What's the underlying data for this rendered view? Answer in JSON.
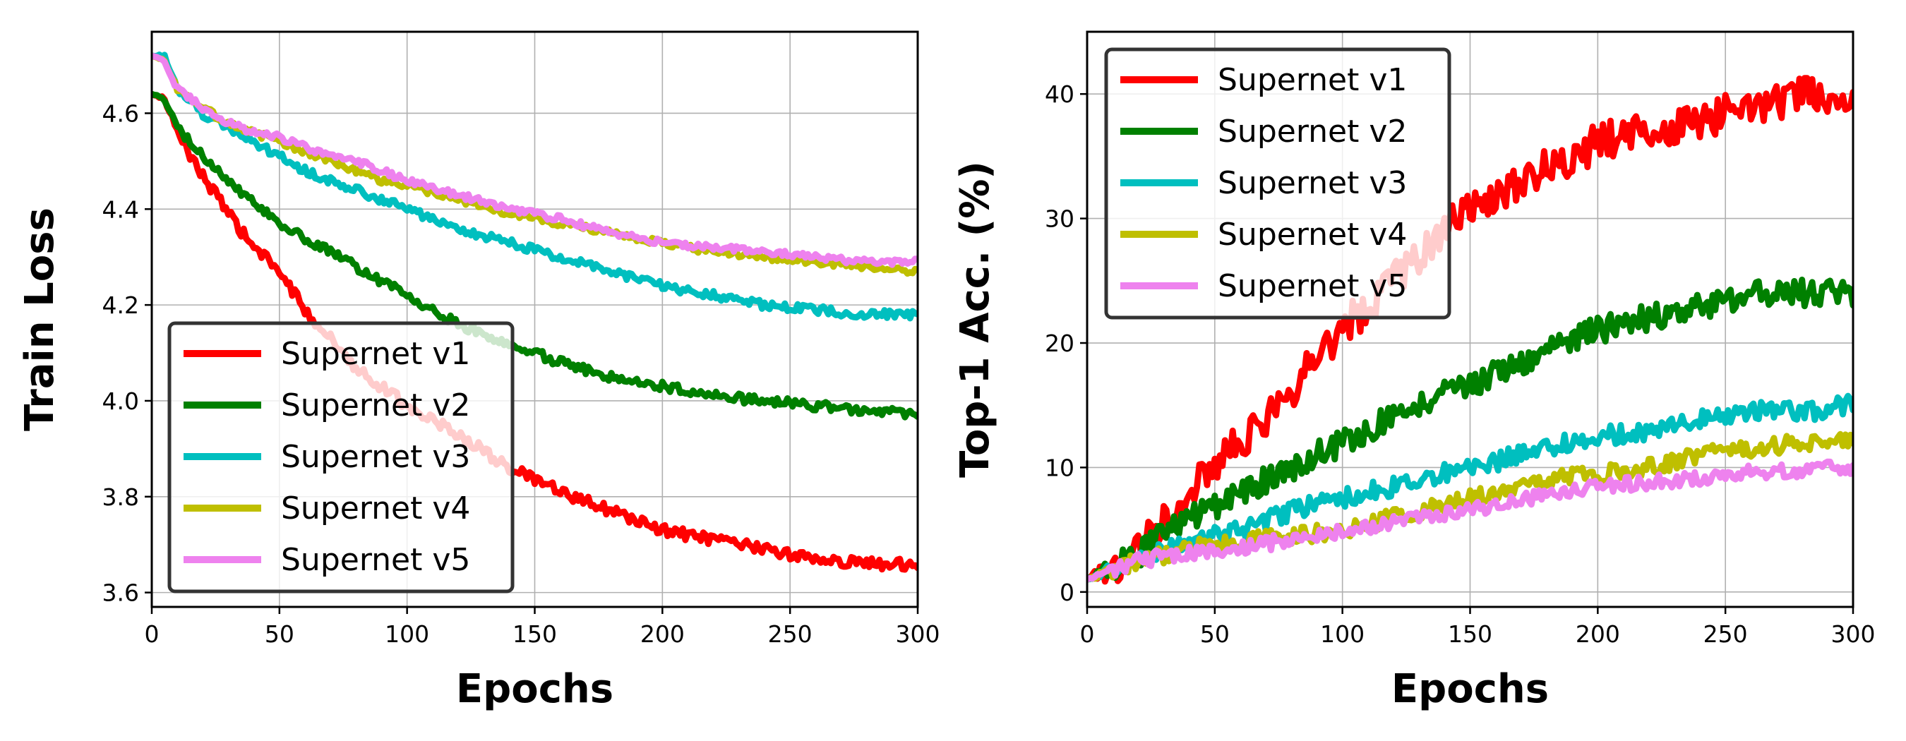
{
  "chart_data": [
    {
      "type": "line",
      "xlabel": "Epochs",
      "ylabel": "Train Loss",
      "xlim": [
        0,
        300
      ],
      "ylim": [
        3.57,
        4.77
      ],
      "xticks": [
        0,
        50,
        100,
        150,
        200,
        250,
        300
      ],
      "yticks": [
        3.6,
        3.8,
        4.0,
        4.2,
        4.4,
        4.6
      ],
      "ytick_labels": [
        "3.6",
        "3.8",
        "4.0",
        "4.2",
        "4.4",
        "4.6"
      ],
      "grid": true,
      "legend_position": "lower-left",
      "series": [
        {
          "name": "Supernet v1",
          "color": "#ff0000",
          "noise": 0.012,
          "x": [
            0,
            5,
            10,
            20,
            30,
            40,
            50,
            60,
            70,
            80,
            90,
            100,
            120,
            140,
            160,
            180,
            200,
            220,
            240,
            260,
            280,
            300
          ],
          "y": [
            4.64,
            4.63,
            4.56,
            4.47,
            4.39,
            4.32,
            4.27,
            4.19,
            4.13,
            4.07,
            4.03,
            3.99,
            3.93,
            3.86,
            3.81,
            3.77,
            3.73,
            3.71,
            3.69,
            3.67,
            3.66,
            3.66
          ]
        },
        {
          "name": "Supernet v2",
          "color": "#008000",
          "noise": 0.01,
          "x": [
            0,
            5,
            10,
            20,
            30,
            40,
            50,
            60,
            70,
            80,
            90,
            100,
            120,
            140,
            160,
            180,
            200,
            220,
            240,
            260,
            280,
            300
          ],
          "y": [
            4.64,
            4.63,
            4.57,
            4.51,
            4.46,
            4.41,
            4.37,
            4.34,
            4.31,
            4.28,
            4.25,
            4.22,
            4.16,
            4.12,
            4.08,
            4.05,
            4.03,
            4.01,
            4.0,
            3.99,
            3.98,
            3.97
          ]
        },
        {
          "name": "Supernet v3",
          "color": "#00bfbf",
          "noise": 0.009,
          "x": [
            0,
            5,
            10,
            20,
            30,
            40,
            50,
            60,
            70,
            80,
            90,
            100,
            120,
            140,
            160,
            180,
            200,
            220,
            240,
            260,
            280,
            300
          ],
          "y": [
            4.72,
            4.72,
            4.65,
            4.6,
            4.57,
            4.54,
            4.51,
            4.48,
            4.46,
            4.44,
            4.42,
            4.4,
            4.36,
            4.33,
            4.3,
            4.27,
            4.24,
            4.22,
            4.2,
            4.19,
            4.18,
            4.18
          ]
        },
        {
          "name": "Supernet v4",
          "color": "#bfbf00",
          "noise": 0.007,
          "x": [
            0,
            5,
            10,
            20,
            30,
            40,
            50,
            60,
            70,
            80,
            90,
            100,
            120,
            140,
            160,
            180,
            200,
            220,
            240,
            260,
            280,
            300
          ],
          "y": [
            4.72,
            4.71,
            4.65,
            4.61,
            4.58,
            4.56,
            4.54,
            4.52,
            4.5,
            4.48,
            4.46,
            4.45,
            4.42,
            4.39,
            4.37,
            4.35,
            4.33,
            4.31,
            4.3,
            4.29,
            4.28,
            4.27
          ]
        },
        {
          "name": "Supernet v5",
          "color": "#ee82ee",
          "noise": 0.007,
          "x": [
            0,
            5,
            10,
            20,
            30,
            40,
            50,
            60,
            70,
            80,
            90,
            100,
            120,
            140,
            160,
            180,
            200,
            220,
            240,
            260,
            280,
            300
          ],
          "y": [
            4.72,
            4.71,
            4.65,
            4.61,
            4.58,
            4.56,
            4.55,
            4.53,
            4.51,
            4.5,
            4.48,
            4.46,
            4.43,
            4.4,
            4.38,
            4.35,
            4.33,
            4.32,
            4.31,
            4.3,
            4.29,
            4.29
          ]
        }
      ]
    },
    {
      "type": "line",
      "xlabel": "Epochs",
      "ylabel": "Top-1 Acc. (%)",
      "xlim": [
        0,
        300
      ],
      "ylim": [
        -1.2,
        45
      ],
      "xticks": [
        0,
        50,
        100,
        150,
        200,
        250,
        300
      ],
      "yticks": [
        0,
        10,
        20,
        30,
        40
      ],
      "ytick_labels": [
        "0",
        "10",
        "20",
        "30",
        "40"
      ],
      "grid": true,
      "legend_position": "upper-left",
      "series": [
        {
          "name": "Supernet v1",
          "color": "#ff0000",
          "noise": 1.6,
          "x": [
            0,
            10,
            20,
            30,
            40,
            50,
            60,
            70,
            80,
            90,
            100,
            110,
            120,
            130,
            140,
            150,
            160,
            170,
            180,
            190,
            200,
            220,
            240,
            260,
            280,
            300
          ],
          "y": [
            1,
            2,
            4,
            6,
            8,
            10,
            12,
            14,
            16,
            19,
            21,
            23,
            25,
            27,
            29,
            31,
            32,
            33,
            34,
            35,
            36,
            37,
            38,
            39,
            40,
            39
          ]
        },
        {
          "name": "Supernet v2",
          "color": "#008000",
          "noise": 1.1,
          "x": [
            0,
            10,
            20,
            30,
            40,
            50,
            60,
            70,
            80,
            90,
            100,
            120,
            140,
            160,
            180,
            200,
            220,
            240,
            260,
            280,
            300
          ],
          "y": [
            1,
            2,
            3,
            4.5,
            6,
            7,
            8,
            9,
            10,
            11,
            12,
            14,
            16,
            17.5,
            19.5,
            21,
            22,
            23,
            24,
            24,
            24
          ]
        },
        {
          "name": "Supernet v3",
          "color": "#00bfbf",
          "noise": 0.8,
          "x": [
            0,
            20,
            40,
            60,
            80,
            100,
            120,
            140,
            160,
            180,
            200,
            220,
            240,
            260,
            280,
            300
          ],
          "y": [
            1,
            2.5,
            4,
            5,
            6.5,
            7.5,
            8.5,
            9.5,
            10.5,
            11.5,
            12.5,
            13,
            14,
            14.5,
            14.5,
            15
          ]
        },
        {
          "name": "Supernet v4",
          "color": "#bfbf00",
          "noise": 0.7,
          "x": [
            0,
            20,
            40,
            60,
            80,
            100,
            120,
            140,
            160,
            180,
            200,
            220,
            240,
            260,
            280,
            300
          ],
          "y": [
            1,
            2.5,
            3.5,
            4,
            4.5,
            5,
            6,
            7,
            8,
            9,
            9.5,
            10,
            11,
            11.5,
            12,
            12
          ]
        },
        {
          "name": "Supernet v5",
          "color": "#ee82ee",
          "noise": 0.6,
          "x": [
            0,
            20,
            40,
            60,
            80,
            100,
            120,
            140,
            160,
            180,
            200,
            220,
            240,
            260,
            280,
            300
          ],
          "y": [
            1,
            2.5,
            3.2,
            3.6,
            4.2,
            4.8,
            5.5,
            6.2,
            7,
            7.8,
            8.4,
            8.8,
            9.2,
            9.6,
            9.8,
            10
          ]
        }
      ]
    }
  ]
}
